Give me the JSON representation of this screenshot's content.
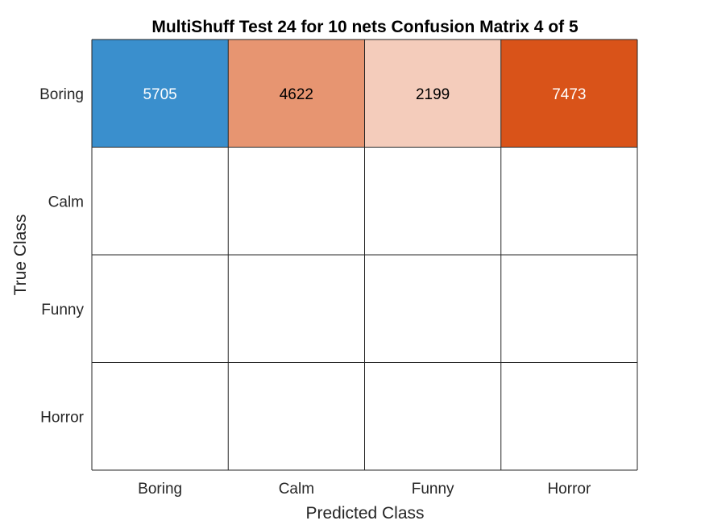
{
  "chart_data": {
    "type": "heatmap",
    "title": "MultiShuff Test 24 for 10 nets Confusion Matrix 4 of 5",
    "xlabel": "Predicted Class",
    "ylabel": "True Class",
    "x_categories": [
      "Boring",
      "Calm",
      "Funny",
      "Horror"
    ],
    "y_categories": [
      "Boring",
      "Calm",
      "Funny",
      "Horror"
    ],
    "values": [
      [
        5705,
        4622,
        2199,
        7473
      ],
      [
        null,
        null,
        null,
        null
      ],
      [
        null,
        null,
        null,
        null
      ],
      [
        null,
        null,
        null,
        null
      ]
    ],
    "grid": true,
    "colors": {
      "diagonal": "#3A8FCD",
      "off_diagonal_max": "#D95319",
      "off_diagonal_min": "#FFFFFF",
      "grid_line": "#262626",
      "label_dark": "#000000",
      "label_light": "#FFFFFF"
    }
  }
}
